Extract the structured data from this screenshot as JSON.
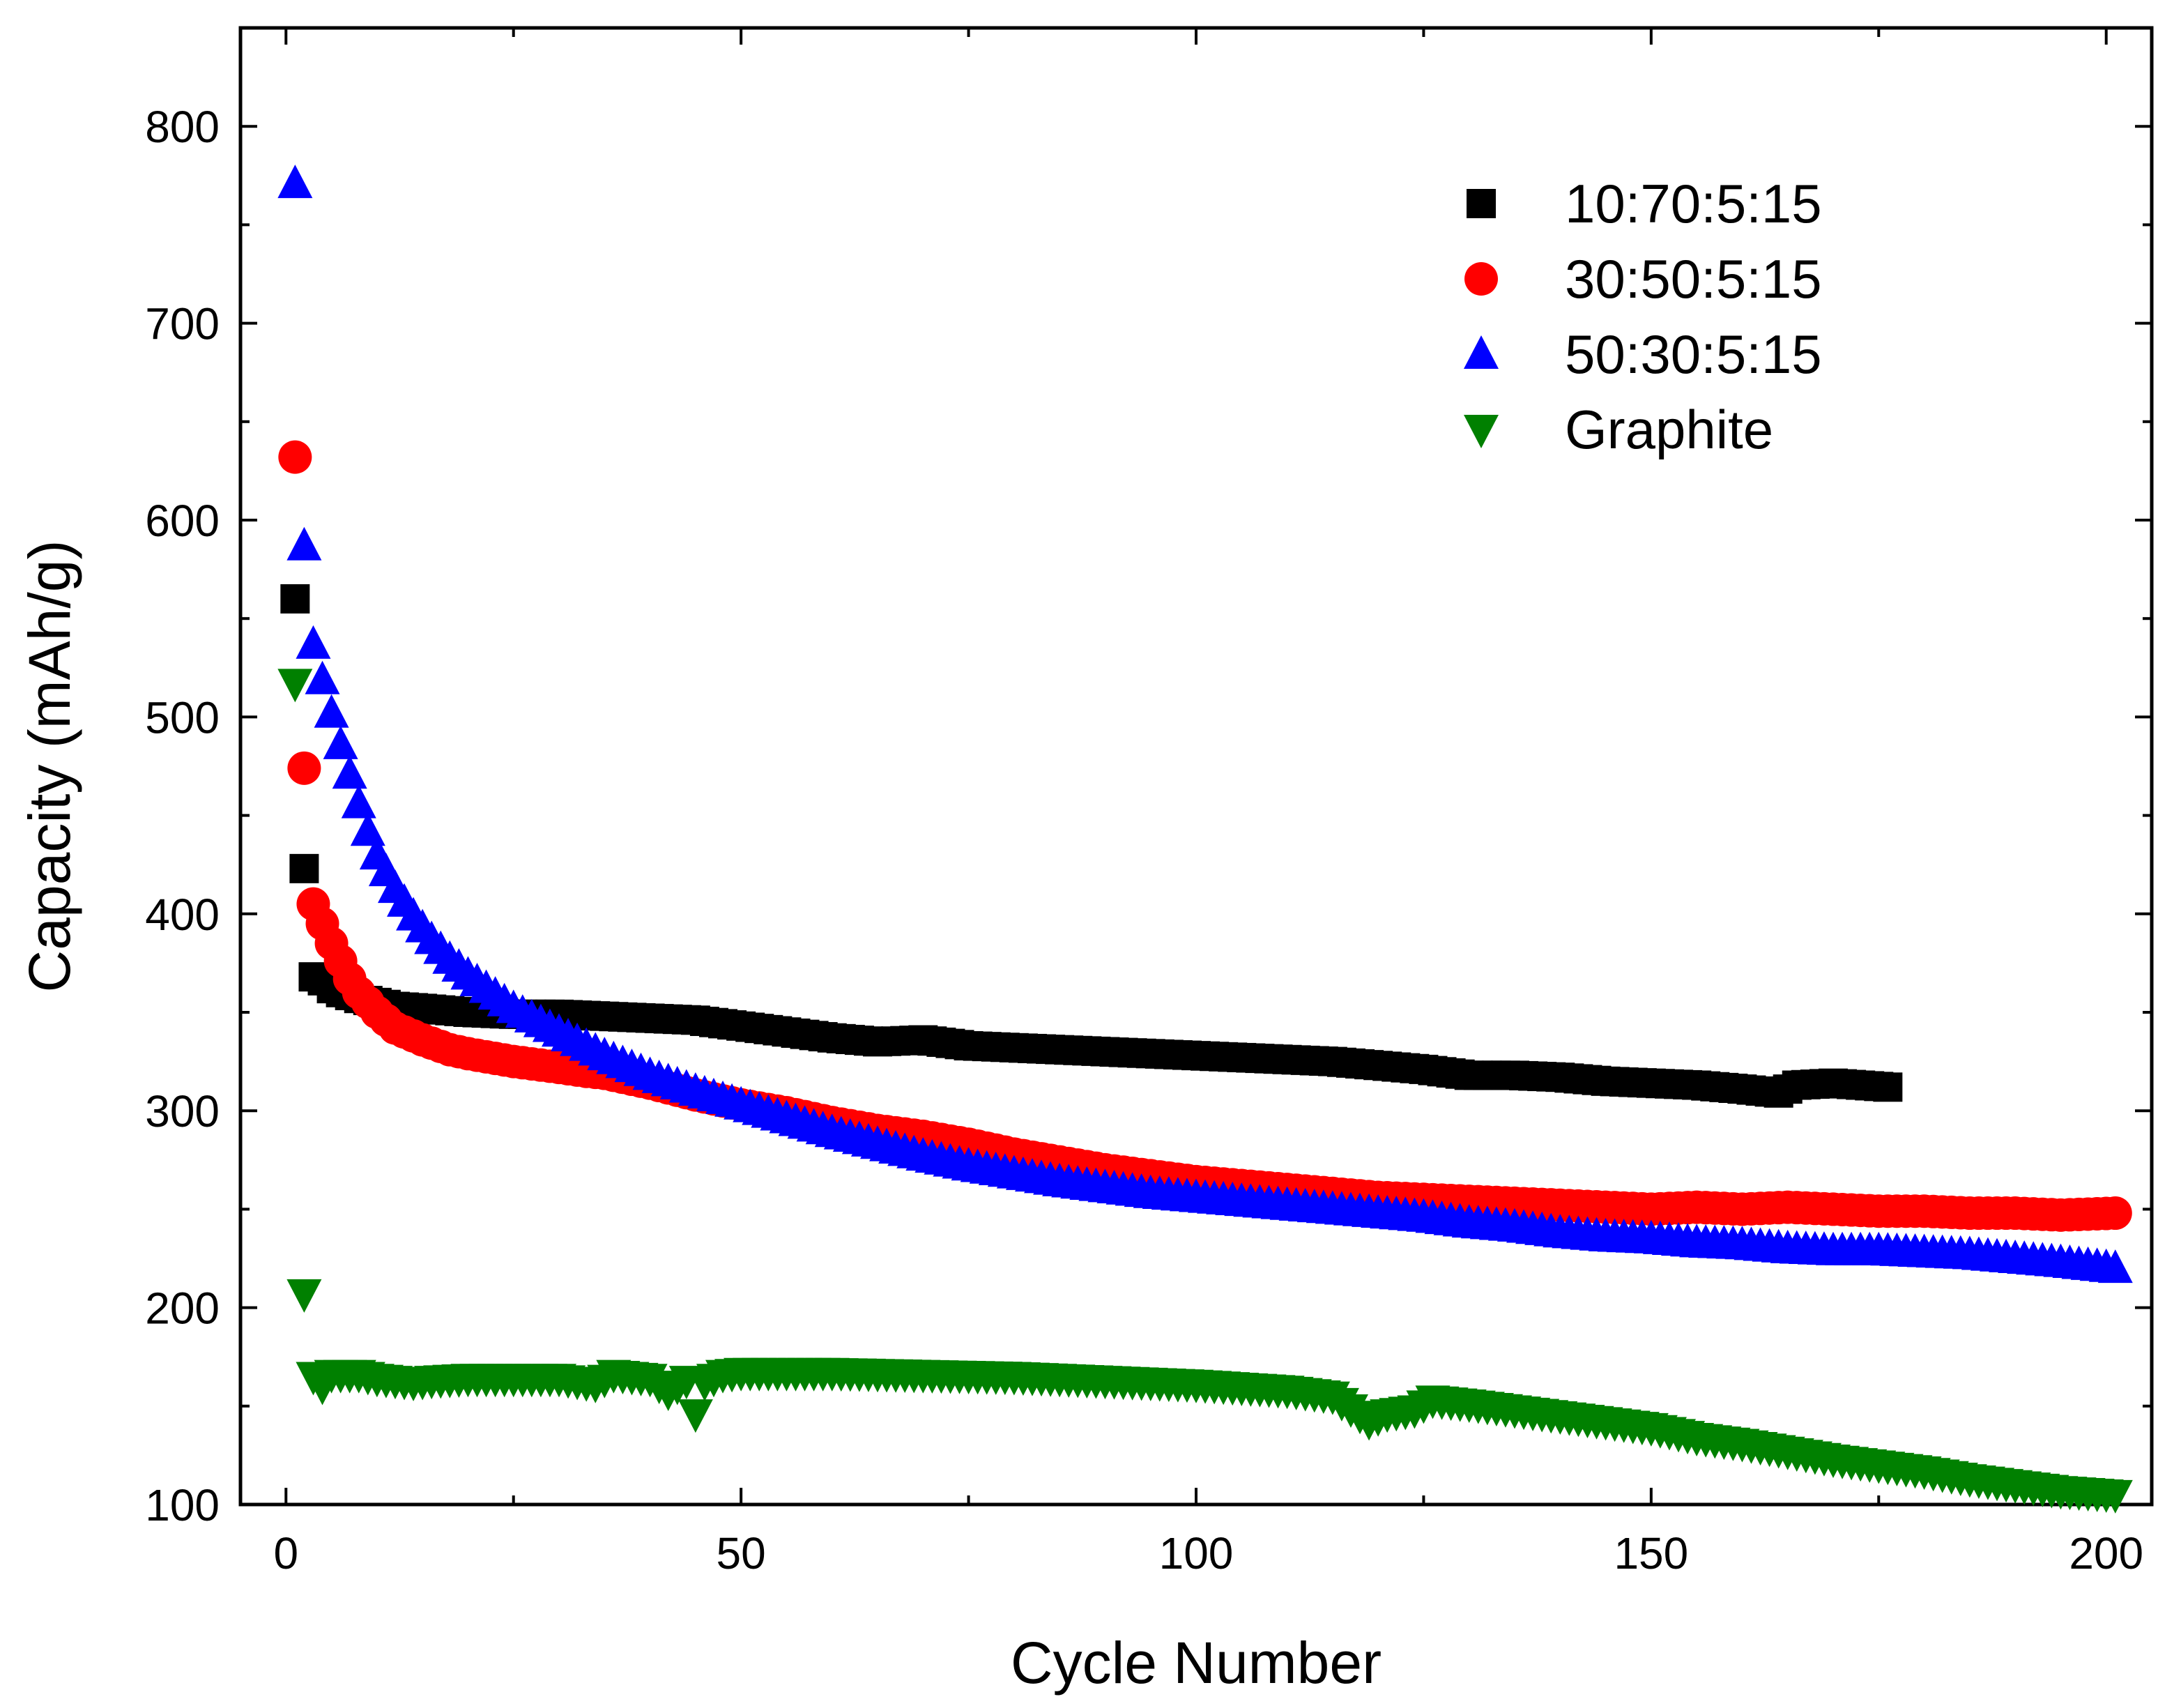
{
  "chart_data": {
    "type": "scatter",
    "title": "",
    "xlabel": "Cycle Number",
    "ylabel": "Capacity (mAh/g)",
    "xlim": [
      -5,
      205
    ],
    "ylim": [
      100,
      850
    ],
    "xticks": [
      0,
      50,
      100,
      150,
      200
    ],
    "yticks": [
      100,
      200,
      300,
      400,
      500,
      600,
      700,
      800
    ],
    "xtick_labels": [
      "0",
      "50",
      "100",
      "150",
      "200"
    ],
    "ytick_labels": [
      "100",
      "200",
      "300",
      "400",
      "500",
      "600",
      "700",
      "800"
    ],
    "legend_position": "top-right",
    "series": [
      {
        "name": "10:70:5:15",
        "color": "#000000",
        "marker": "square",
        "points": [
          [
            1,
            560
          ],
          [
            2,
            423
          ],
          [
            3,
            368
          ],
          [
            4,
            366
          ],
          [
            5,
            362
          ],
          [
            6,
            360
          ],
          [
            8,
            357
          ],
          [
            10,
            355
          ],
          [
            12,
            353
          ],
          [
            15,
            352
          ],
          [
            20,
            350
          ],
          [
            25,
            349
          ],
          [
            30,
            349
          ],
          [
            35,
            348
          ],
          [
            40,
            347
          ],
          [
            45,
            346
          ],
          [
            50,
            343
          ],
          [
            55,
            340
          ],
          [
            60,
            337
          ],
          [
            65,
            335
          ],
          [
            70,
            336
          ],
          [
            75,
            333
          ],
          [
            80,
            332
          ],
          [
            85,
            331
          ],
          [
            90,
            330
          ],
          [
            95,
            329
          ],
          [
            100,
            328
          ],
          [
            105,
            327
          ],
          [
            110,
            326
          ],
          [
            115,
            325
          ],
          [
            120,
            323
          ],
          [
            125,
            321
          ],
          [
            130,
            318
          ],
          [
            135,
            318
          ],
          [
            140,
            317
          ],
          [
            145,
            315
          ],
          [
            150,
            314
          ],
          [
            155,
            313
          ],
          [
            160,
            311
          ],
          [
            164,
            309
          ],
          [
            166,
            313
          ],
          [
            170,
            314
          ],
          [
            176,
            312
          ]
        ]
      },
      {
        "name": "30:50:5:15",
        "color": "#ff0000",
        "marker": "circle",
        "points": [
          [
            1,
            632
          ],
          [
            2,
            474
          ],
          [
            3,
            405
          ],
          [
            4,
            395
          ],
          [
            5,
            385
          ],
          [
            6,
            376
          ],
          [
            7,
            367
          ],
          [
            8,
            360
          ],
          [
            10,
            350
          ],
          [
            12,
            342
          ],
          [
            15,
            336
          ],
          [
            18,
            331
          ],
          [
            20,
            329
          ],
          [
            25,
            325
          ],
          [
            30,
            322
          ],
          [
            33,
            320
          ],
          [
            35,
            319
          ],
          [
            40,
            314
          ],
          [
            45,
            308
          ],
          [
            50,
            303
          ],
          [
            55,
            299
          ],
          [
            60,
            294
          ],
          [
            65,
            290
          ],
          [
            70,
            287
          ],
          [
            75,
            283
          ],
          [
            80,
            278
          ],
          [
            85,
            274
          ],
          [
            90,
            270
          ],
          [
            95,
            267
          ],
          [
            100,
            264
          ],
          [
            105,
            262
          ],
          [
            110,
            260
          ],
          [
            115,
            258
          ],
          [
            120,
            256
          ],
          [
            125,
            255
          ],
          [
            130,
            254
          ],
          [
            135,
            253
          ],
          [
            140,
            252
          ],
          [
            145,
            251
          ],
          [
            150,
            250
          ],
          [
            155,
            251
          ],
          [
            160,
            250
          ],
          [
            165,
            251
          ],
          [
            170,
            250
          ],
          [
            175,
            249
          ],
          [
            180,
            249
          ],
          [
            185,
            248
          ],
          [
            190,
            248
          ],
          [
            195,
            247
          ],
          [
            201,
            248
          ]
        ]
      },
      {
        "name": "50:30:5:15",
        "color": "#0000ff",
        "marker": "triangle-up",
        "points": [
          [
            1,
            771
          ],
          [
            2,
            587
          ],
          [
            3,
            537
          ],
          [
            4,
            519
          ],
          [
            5,
            502
          ],
          [
            6,
            486
          ],
          [
            7,
            471
          ],
          [
            8,
            456
          ],
          [
            9,
            442
          ],
          [
            10,
            430
          ],
          [
            12,
            413
          ],
          [
            14,
            399
          ],
          [
            16,
            387
          ],
          [
            18,
            377
          ],
          [
            20,
            369
          ],
          [
            25,
            352
          ],
          [
            30,
            340
          ],
          [
            35,
            328
          ],
          [
            40,
            318
          ],
          [
            45,
            310
          ],
          [
            50,
            303
          ],
          [
            55,
            296
          ],
          [
            60,
            289
          ],
          [
            65,
            283
          ],
          [
            70,
            277
          ],
          [
            75,
            272
          ],
          [
            80,
            268
          ],
          [
            85,
            264
          ],
          [
            90,
            261
          ],
          [
            95,
            258
          ],
          [
            100,
            256
          ],
          [
            105,
            254
          ],
          [
            110,
            252
          ],
          [
            115,
            250
          ],
          [
            120,
            248
          ],
          [
            125,
            246
          ],
          [
            130,
            243
          ],
          [
            135,
            241
          ],
          [
            140,
            238
          ],
          [
            145,
            236
          ],
          [
            150,
            235
          ],
          [
            155,
            233
          ],
          [
            160,
            232
          ],
          [
            165,
            230
          ],
          [
            170,
            229
          ],
          [
            175,
            229
          ],
          [
            180,
            228
          ],
          [
            185,
            227
          ],
          [
            190,
            225
          ],
          [
            195,
            223
          ],
          [
            201,
            220
          ]
        ]
      },
      {
        "name": "Graphite",
        "color": "#008000",
        "marker": "triangle-down",
        "points": [
          [
            1,
            517
          ],
          [
            2,
            207
          ],
          [
            3,
            165
          ],
          [
            4,
            160
          ],
          [
            5,
            166
          ],
          [
            6,
            166
          ],
          [
            8,
            166
          ],
          [
            10,
            164
          ],
          [
            12,
            163
          ],
          [
            14,
            162
          ],
          [
            16,
            163
          ],
          [
            20,
            164
          ],
          [
            25,
            164
          ],
          [
            30,
            164
          ],
          [
            34,
            161
          ],
          [
            36,
            166
          ],
          [
            40,
            164
          ],
          [
            42,
            157
          ],
          [
            44,
            163
          ],
          [
            45,
            146
          ],
          [
            46,
            162
          ],
          [
            48,
            166
          ],
          [
            50,
            167
          ],
          [
            60,
            167
          ],
          [
            70,
            166
          ],
          [
            80,
            165
          ],
          [
            90,
            163
          ],
          [
            100,
            161
          ],
          [
            110,
            158
          ],
          [
            115,
            155
          ],
          [
            119,
            142
          ],
          [
            121,
            146
          ],
          [
            124,
            148
          ],
          [
            126,
            153
          ],
          [
            130,
            151
          ],
          [
            135,
            148
          ],
          [
            140,
            145
          ],
          [
            145,
            142
          ],
          [
            150,
            139
          ],
          [
            155,
            134
          ],
          [
            160,
            131
          ],
          [
            165,
            127
          ],
          [
            170,
            123
          ],
          [
            175,
            120
          ],
          [
            180,
            117
          ],
          [
            185,
            113
          ],
          [
            190,
            110
          ],
          [
            195,
            107
          ],
          [
            201,
            105
          ]
        ]
      }
    ]
  }
}
